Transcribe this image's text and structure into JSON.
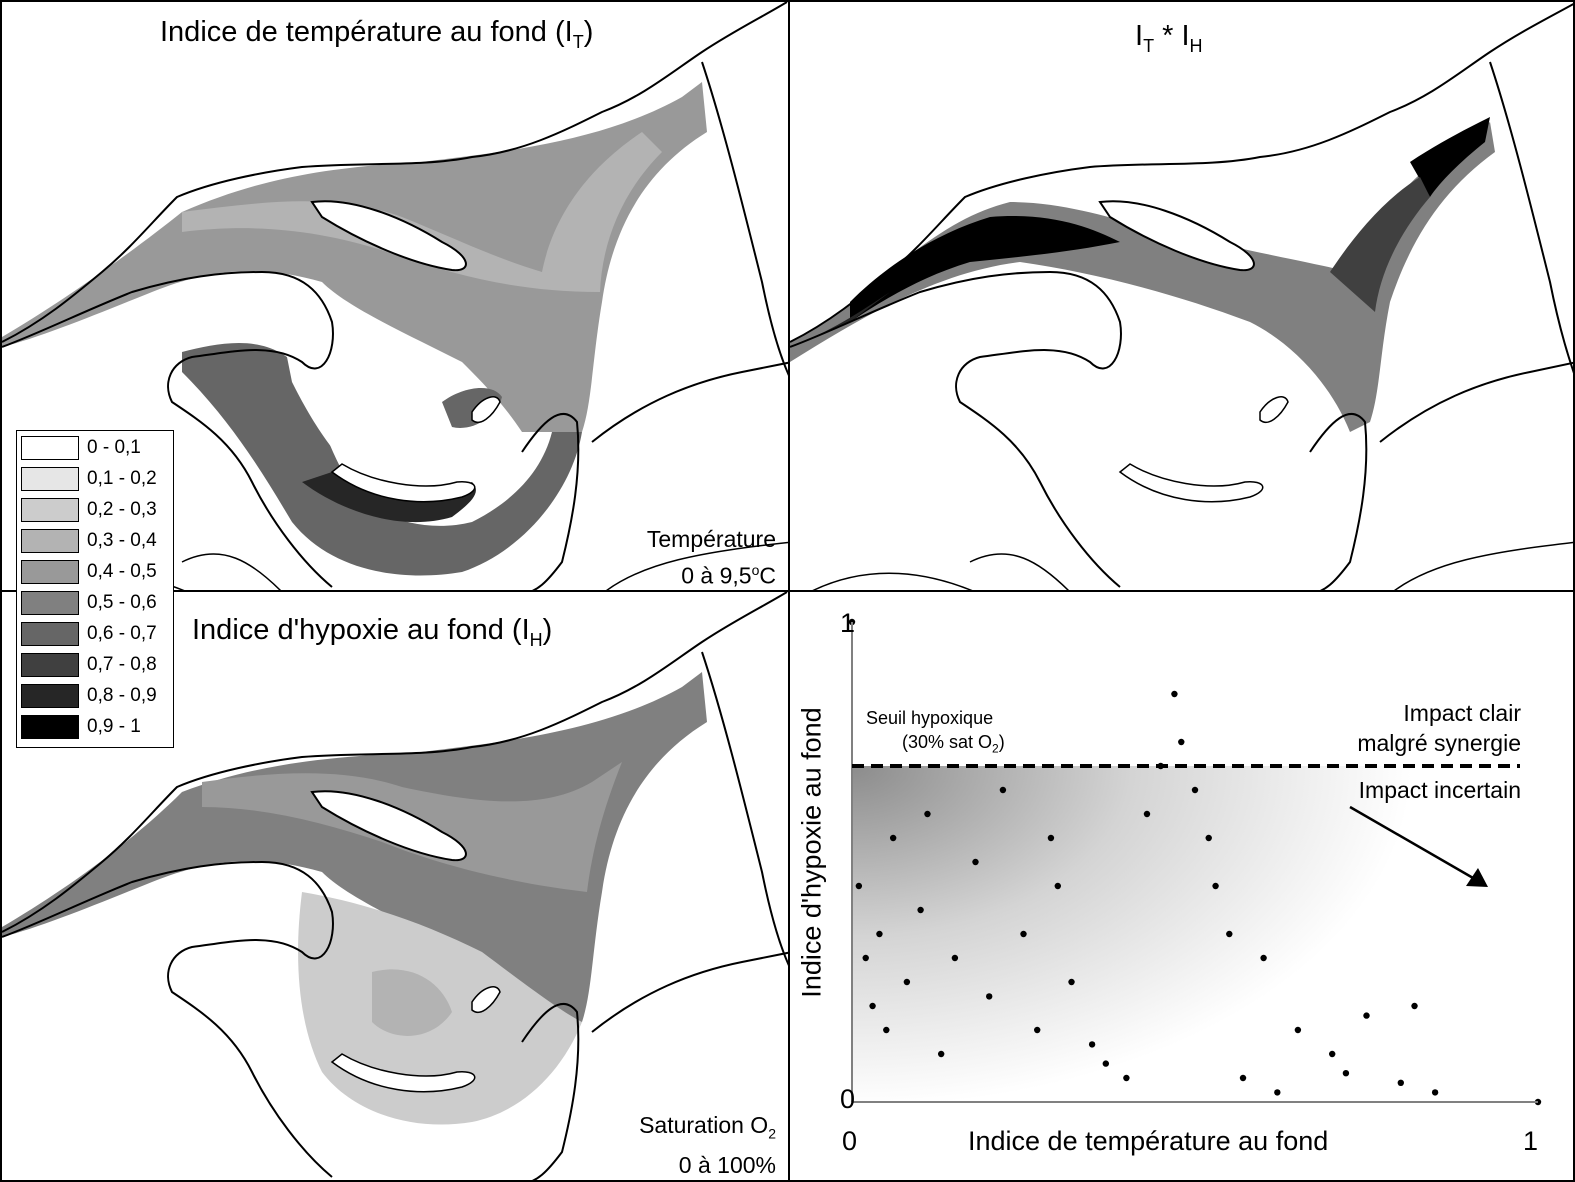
{
  "panels": {
    "temperature": {
      "title": "Indice de température au fond (I",
      "title_sub": "T",
      "title_end": ")",
      "note_line1": "Température",
      "note_line2a": "0 à 9,5",
      "note_sup": "o",
      "note_line2b": "C"
    },
    "product": {
      "t1": "I",
      "t1_sub": "T",
      "mid": " * I",
      "t2_sub": "H"
    },
    "hypoxia": {
      "title": "Indice d'hypoxie au fond (I",
      "title_sub": "H",
      "title_end": ")",
      "note_line1a": "Saturation O",
      "note_sub": "2",
      "note_line2": "0 à 100%"
    }
  },
  "legend": {
    "items": [
      {
        "label": "0 - 0,1",
        "color": "#ffffff"
      },
      {
        "label": "0,1 - 0,2",
        "color": "#e6e6e6"
      },
      {
        "label": "0,2 - 0,3",
        "color": "#cccccc"
      },
      {
        "label": "0,3 - 0,4",
        "color": "#b3b3b3"
      },
      {
        "label": "0,4 - 0,5",
        "color": "#999999"
      },
      {
        "label": "0,5 - 0,6",
        "color": "#808080"
      },
      {
        "label": "0,6 - 0,7",
        "color": "#666666"
      },
      {
        "label": "0,7 - 0,8",
        "color": "#404040"
      },
      {
        "label": "0,8 - 0,9",
        "color": "#262626"
      },
      {
        "label": "0,9 - 1",
        "color": "#000000"
      }
    ]
  },
  "scatter": {
    "xlabel": "Indice de température au fond",
    "ylabel": "Indice d'hypoxie au fond",
    "x_ticks": [
      "0",
      "1"
    ],
    "y_ticks": [
      "0",
      "1"
    ],
    "threshold_label1": "Seuil hypoxique",
    "threshold_label2a": "(30% sat O",
    "threshold_sub": "2",
    "threshold_label2b": ")",
    "impact_clear1": "Impact clair",
    "impact_clear2": "malgré synergie",
    "impact_uncertain": "Impact incertain"
  },
  "chart_data": {
    "type": "scatter",
    "xlabel": "Indice de température au fond",
    "ylabel": "Indice d'hypoxie au fond",
    "xlim": [
      0,
      1
    ],
    "ylim": [
      0,
      1
    ],
    "threshold_y": 0.7,
    "series": [
      {
        "values_x": [
          0,
          0.01,
          0.02,
          0.03,
          0.04,
          0.05,
          0.06,
          0.08,
          0.1,
          0.11,
          0.13,
          0.15,
          0.18,
          0.2,
          0.22,
          0.25,
          0.27,
          0.29,
          0.3,
          0.32,
          0.35,
          0.37,
          0.4,
          0.43,
          0.45,
          0.47,
          0.48,
          0.5,
          0.52,
          0.53,
          0.55,
          0.57,
          0.6,
          0.62,
          0.65,
          0.7,
          0.72,
          0.75,
          0.8,
          0.82,
          0.85,
          1.0
        ],
        "values_y": [
          1.0,
          0.45,
          0.3,
          0.2,
          0.35,
          0.15,
          0.55,
          0.25,
          0.4,
          0.6,
          0.1,
          0.3,
          0.5,
          0.22,
          0.65,
          0.35,
          0.15,
          0.55,
          0.45,
          0.25,
          0.12,
          0.08,
          0.05,
          0.6,
          0.7,
          0.85,
          0.75,
          0.65,
          0.55,
          0.45,
          0.35,
          0.05,
          0.3,
          0.02,
          0.15,
          0.1,
          0.06,
          0.18,
          0.04,
          0.2,
          0.02,
          0.0
        ]
      }
    ]
  }
}
